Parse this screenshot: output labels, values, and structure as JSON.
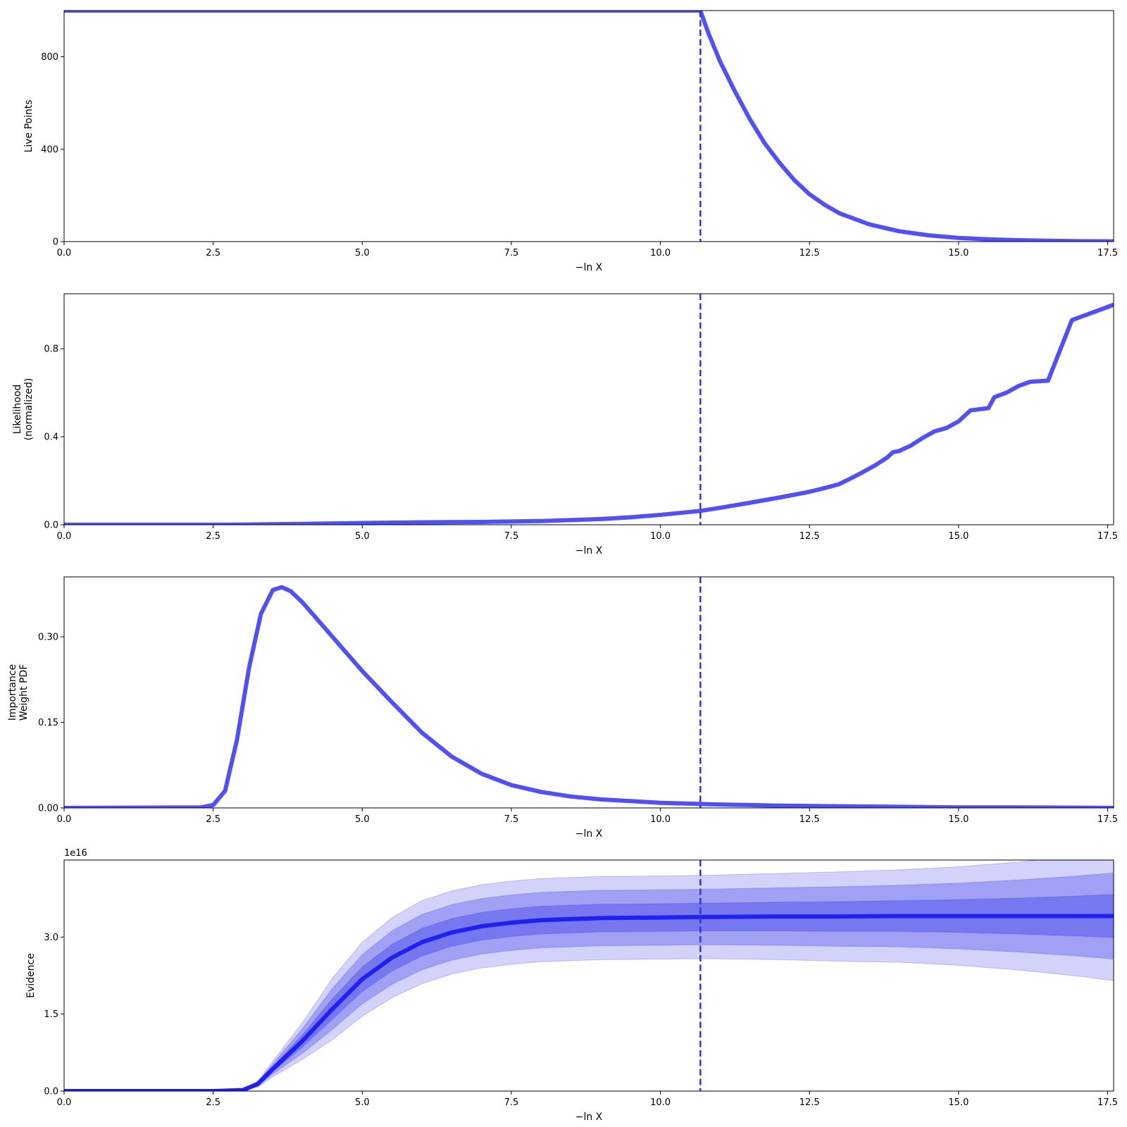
{
  "chart_data": [
    {
      "type": "line",
      "title": "",
      "xlabel": "−ln X",
      "ylabel": "Live Points",
      "xlim": [
        0.0,
        17.6
      ],
      "ylim": [
        0,
        1000
      ],
      "xticks": [
        0.0,
        2.5,
        5.0,
        7.5,
        10.0,
        12.5,
        15.0,
        17.5
      ],
      "xtick_labels": [
        "0.0",
        "2.5",
        "5.0",
        "7.5",
        "10.0",
        "12.5",
        "15.0",
        "17.5"
      ],
      "yticks": [
        0,
        400,
        800
      ],
      "ytick_labels": [
        "0",
        "400",
        "800"
      ],
      "offset_text": "",
      "vline_x": 10.67,
      "line_color": "#5050f5",
      "series": [
        {
          "x": [
            0.0,
            10.67,
            10.8,
            11.0,
            11.25,
            11.5,
            11.75,
            12.0,
            12.25,
            12.5,
            12.75,
            13.0,
            13.5,
            14.0,
            14.5,
            15.0,
            15.5,
            16.0,
            16.5,
            17.0,
            17.6
          ],
          "y": [
            1000,
            1000,
            905,
            780,
            650,
            530,
            425,
            340,
            265,
            205,
            160,
            123,
            75,
            45,
            27,
            16,
            10,
            6,
            4,
            2,
            1
          ]
        }
      ]
    },
    {
      "type": "line",
      "title": "",
      "xlabel": "−ln X",
      "ylabel": "Likelihood\n(normalized)",
      "xlim": [
        0.0,
        17.6
      ],
      "ylim": [
        0,
        1.05
      ],
      "xticks": [
        0.0,
        2.5,
        5.0,
        7.5,
        10.0,
        12.5,
        15.0,
        17.5
      ],
      "xtick_labels": [
        "0.0",
        "2.5",
        "5.0",
        "7.5",
        "10.0",
        "12.5",
        "15.0",
        "17.5"
      ],
      "yticks": [
        0.0,
        0.4,
        0.8
      ],
      "ytick_labels": [
        "0.0",
        "0.4",
        "0.8"
      ],
      "offset_text": "",
      "vline_x": 10.67,
      "line_color": "#5050f5",
      "series": [
        {
          "x": [
            0.0,
            2.5,
            3.0,
            4.0,
            5.0,
            6.0,
            7.0,
            8.0,
            9.0,
            9.5,
            10.0,
            10.67,
            11.0,
            11.5,
            12.0,
            12.5,
            12.8,
            13.0,
            13.2,
            13.4,
            13.6,
            13.8,
            13.9,
            14.0,
            14.2,
            14.4,
            14.6,
            14.8,
            15.0,
            15.2,
            15.5,
            15.6,
            15.8,
            16.0,
            16.2,
            16.5,
            16.9,
            17.6
          ],
          "y": [
            0.0,
            0.0,
            0.001,
            0.004,
            0.008,
            0.011,
            0.013,
            0.017,
            0.026,
            0.034,
            0.045,
            0.063,
            0.077,
            0.1,
            0.124,
            0.15,
            0.17,
            0.185,
            0.212,
            0.24,
            0.27,
            0.305,
            0.33,
            0.335,
            0.36,
            0.395,
            0.425,
            0.44,
            0.47,
            0.52,
            0.53,
            0.58,
            0.6,
            0.63,
            0.65,
            0.655,
            0.93,
            1.0
          ]
        }
      ]
    },
    {
      "type": "line",
      "title": "",
      "xlabel": "−ln X",
      "ylabel": "Importance\nWeight PDF",
      "xlim": [
        0.0,
        17.6
      ],
      "ylim": [
        0,
        0.405
      ],
      "xticks": [
        0.0,
        2.5,
        5.0,
        7.5,
        10.0,
        12.5,
        15.0,
        17.5
      ],
      "xtick_labels": [
        "0.0",
        "2.5",
        "5.0",
        "7.5",
        "10.0",
        "12.5",
        "15.0",
        "17.5"
      ],
      "yticks": [
        0.0,
        0.15,
        0.3
      ],
      "ytick_labels": [
        "0.00",
        "0.15",
        "0.30"
      ],
      "offset_text": "",
      "vline_x": 10.67,
      "line_color": "#5050f5",
      "series": [
        {
          "x": [
            0.0,
            2.3,
            2.5,
            2.7,
            2.9,
            3.1,
            3.3,
            3.5,
            3.65,
            3.8,
            4.0,
            4.5,
            5.0,
            5.5,
            6.0,
            6.5,
            7.0,
            7.5,
            8.0,
            8.5,
            9.0,
            10.0,
            11.0,
            12.0,
            13.0,
            14.0,
            15.0,
            16.0,
            17.6
          ],
          "y": [
            0.0,
            0.001,
            0.005,
            0.03,
            0.12,
            0.245,
            0.34,
            0.382,
            0.387,
            0.38,
            0.36,
            0.3,
            0.24,
            0.185,
            0.132,
            0.09,
            0.06,
            0.04,
            0.028,
            0.02,
            0.015,
            0.009,
            0.006,
            0.004,
            0.003,
            0.002,
            0.001,
            0.001,
            0.0
          ]
        }
      ]
    },
    {
      "type": "area",
      "title": "",
      "xlabel": "−ln X",
      "ylabel": "Evidence",
      "xlim": [
        0.0,
        17.6
      ],
      "ylim": [
        0,
        4.5
      ],
      "xticks": [
        0.0,
        2.5,
        5.0,
        7.5,
        10.0,
        12.5,
        15.0,
        17.5
      ],
      "xtick_labels": [
        "0.0",
        "2.5",
        "5.0",
        "7.5",
        "10.0",
        "12.5",
        "15.0",
        "17.5"
      ],
      "yticks": [
        0.0,
        1.5,
        3.0
      ],
      "ytick_labels": [
        "0.0",
        "1.5",
        "3.0"
      ],
      "offset_text": "1e16",
      "vline_x": 10.67,
      "line_color": "#2020f0",
      "band_color": "#3030e8",
      "series": [
        {
          "x": [
            0.0,
            2.5,
            3.0,
            3.25,
            3.5,
            4.0,
            4.5,
            5.0,
            5.5,
            6.0,
            6.5,
            7.0,
            7.5,
            8.0,
            9.0,
            10.0,
            10.67,
            12.0,
            13.0,
            14.0,
            15.0,
            16.0,
            17.0,
            17.6
          ],
          "y": [
            0.0,
            0.0,
            0.02,
            0.14,
            0.43,
            0.98,
            1.6,
            2.18,
            2.6,
            2.9,
            3.09,
            3.21,
            3.28,
            3.33,
            3.37,
            3.38,
            3.39,
            3.4,
            3.4,
            3.41,
            3.41,
            3.41,
            3.41,
            3.41
          ],
          "sigma": [
            0.0,
            0.0,
            0.002,
            0.02,
            0.05,
            0.12,
            0.2,
            0.24,
            0.26,
            0.27,
            0.27,
            0.27,
            0.27,
            0.27,
            0.27,
            0.27,
            0.27,
            0.28,
            0.29,
            0.3,
            0.32,
            0.35,
            0.39,
            0.42
          ]
        }
      ]
    }
  ]
}
